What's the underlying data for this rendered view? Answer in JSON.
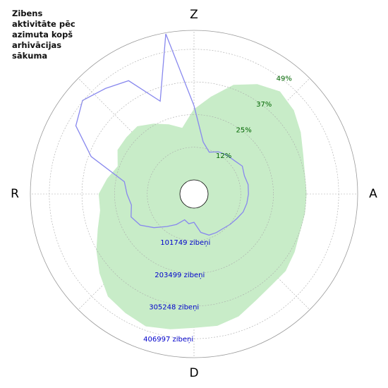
{
  "chart_data": {
    "type": "polar",
    "title": "Zibens aktivitāte pēc azimuta kopš arhivācijas sākuma",
    "direction_labels": [
      "Z",
      "A",
      "D",
      "R"
    ],
    "x": [
      0,
      10,
      20,
      30,
      40,
      50,
      60,
      70,
      80,
      90,
      100,
      110,
      120,
      130,
      140,
      150,
      160,
      170,
      180,
      190,
      200,
      210,
      220,
      230,
      240,
      250,
      260,
      270,
      280,
      290,
      300,
      310,
      320,
      330,
      340,
      350
    ],
    "rlim": [
      0,
      466000
    ],
    "rticks": [
      {
        "value": 101749,
        "label": "101749 zibeņi"
      },
      {
        "value": 203499,
        "label": "203499 zibeņi"
      },
      {
        "value": 305248,
        "label": "305248 zibeņi"
      },
      {
        "value": 406997,
        "label": "406997 zibeņi"
      }
    ],
    "r2lim": [
      0,
      56
    ],
    "r2ticks": [
      {
        "value": 12.25,
        "label": "12%"
      },
      {
        "value": 24.5,
        "label": "25%"
      },
      {
        "value": 36.75,
        "label": "37%"
      },
      {
        "value": 49,
        "label": "49%"
      }
    ],
    "series": [
      {
        "color": "#c8ecc8",
        "axis": "r",
        "values": [
          219000,
          263000,
          317000,
          350000,
          372000,
          361000,
          339000,
          317000,
          306000,
          306000,
          306000,
          306000,
          317000,
          328000,
          328000,
          339000,
          361000,
          372000,
          372000,
          383000,
          394000,
          383000,
          372000,
          339000,
          306000,
          274000,
          252000,
          252000,
          230000,
          208000,
          230000,
          230000,
          230000,
          208000,
          186000,
          164000
        ]
      },
      {
        "color": "#8888ee",
        "axis": "r2",
        "values": [
          27.8,
          14.5,
          11.4,
          13,
          13.8,
          14.3,
          15.6,
          14.8,
          15.3,
          15.1,
          14.8,
          14.3,
          13.2,
          12.4,
          11.6,
          11.4,
          11.1,
          9.3,
          5.3,
          6,
          5,
          7.9,
          10.6,
          14.3,
          18,
          19.8,
          18.5,
          19.8,
          21.2,
          35.7,
          45.8,
          49.2,
          46.3,
          43.7,
          31.7,
          55.6
        ]
      }
    ]
  }
}
